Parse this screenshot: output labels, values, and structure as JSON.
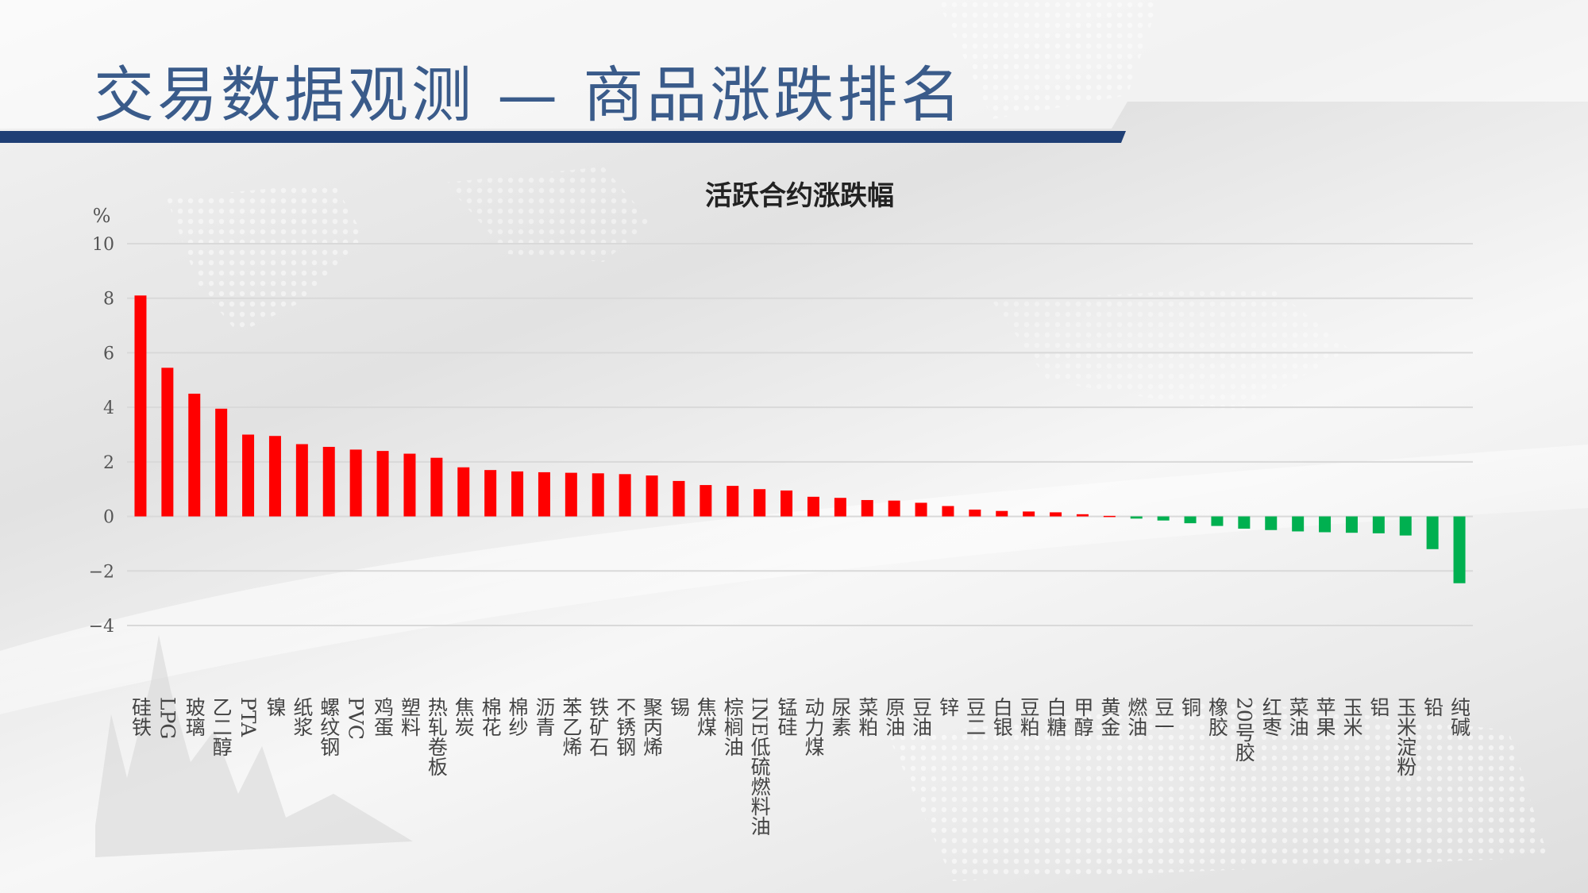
{
  "slide": {
    "title": "交易数据观测 — 商品涨跌排名"
  },
  "colors": {
    "title": "#3a5b8a",
    "header_rule": "#1f3f75",
    "positive": "#ff0000",
    "negative": "#00b050",
    "grid": "#d9d9d9"
  },
  "chart_data": {
    "type": "bar",
    "title": "活跃合约涨跌幅",
    "ylabel": "%",
    "ylim": [
      -4,
      10
    ],
    "yticks": [
      -4,
      -2,
      0,
      2,
      4,
      6,
      8,
      10
    ],
    "grid": true,
    "legend": "none",
    "categories": [
      "硅铁",
      "LPG",
      "玻璃",
      "乙二醇",
      "PTA",
      "镍",
      "纸浆",
      "螺纹钢",
      "PVC",
      "鸡蛋",
      "塑料",
      "热轧卷板",
      "焦炭",
      "棉花",
      "棉纱",
      "沥青",
      "苯乙烯",
      "铁矿石",
      "不锈钢",
      "聚丙烯",
      "锡",
      "焦煤",
      "棕榈油",
      "INE低硫燃料油",
      "锰硅",
      "动力煤",
      "尿素",
      "菜粕",
      "原油",
      "豆油",
      "锌",
      "豆二",
      "白银",
      "豆粕",
      "白糖",
      "甲醇",
      "黄金",
      "燃油",
      "豆一",
      "铜",
      "橡胶",
      "20号胶",
      "红枣",
      "菜油",
      "苹果",
      "玉米",
      "铝",
      "玉米淀粉",
      "铅",
      "纯碱"
    ],
    "values": [
      8.1,
      5.45,
      4.5,
      3.95,
      3.0,
      2.95,
      2.65,
      2.55,
      2.45,
      2.4,
      2.3,
      2.15,
      1.8,
      1.7,
      1.65,
      1.62,
      1.6,
      1.58,
      1.55,
      1.5,
      1.3,
      1.15,
      1.12,
      1.0,
      0.95,
      0.72,
      0.68,
      0.6,
      0.58,
      0.5,
      0.38,
      0.25,
      0.2,
      0.18,
      0.15,
      0.08,
      0.02,
      -0.08,
      -0.15,
      -0.25,
      -0.35,
      -0.45,
      -0.5,
      -0.55,
      -0.58,
      -0.6,
      -0.62,
      -0.7,
      -1.2,
      -2.45
    ]
  }
}
